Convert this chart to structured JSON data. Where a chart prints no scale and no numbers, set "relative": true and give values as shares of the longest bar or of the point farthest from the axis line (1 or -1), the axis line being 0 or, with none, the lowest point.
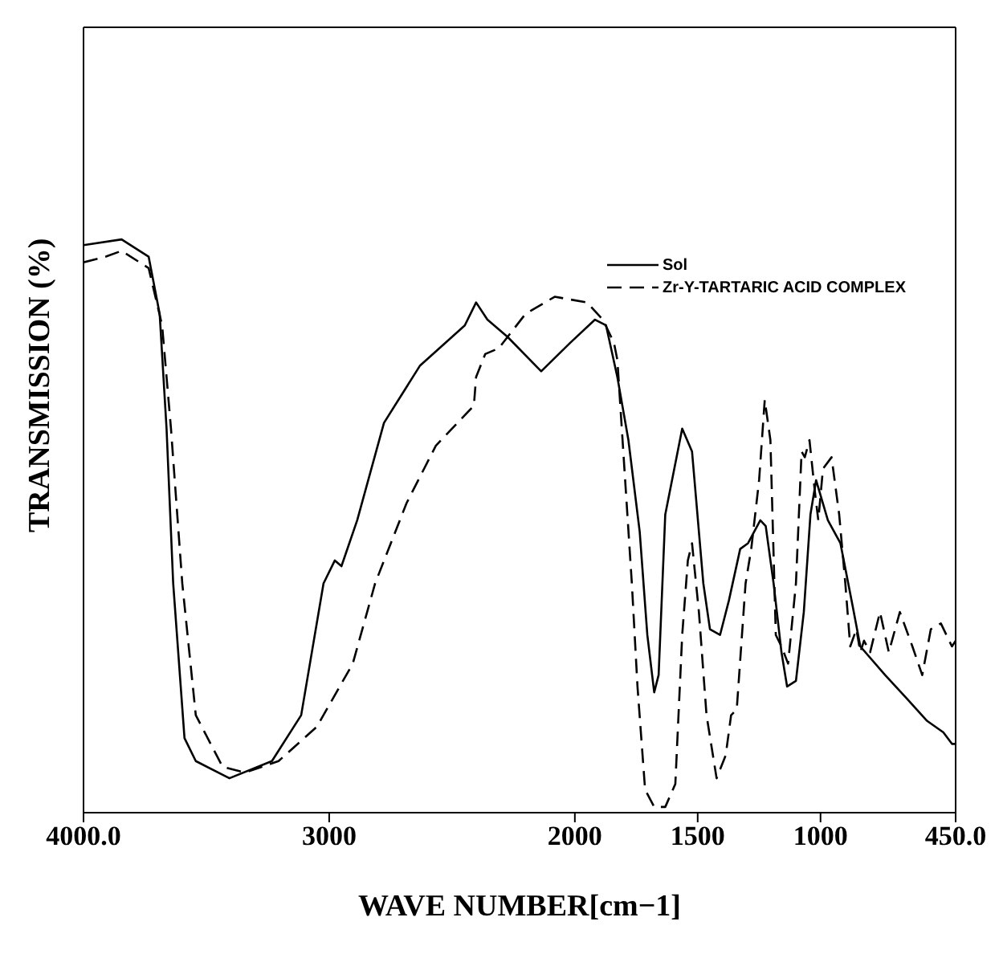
{
  "chart_data": {
    "type": "line",
    "relative": true,
    "xlabel": "WAVE NUMBER[cm−1]",
    "ylabel": "TRANSMISSION (%)",
    "xlim": [
      4000,
      450
    ],
    "xticks": [
      {
        "value": 4000,
        "label": "4000.0"
      },
      3000,
      2000,
      1500,
      1000,
      {
        "value": 450,
        "label": "450.0"
      }
    ],
    "legend": "top right",
    "grid": false,
    "marker": "none",
    "series": [
      {
        "name": "Sol",
        "color": "#000000",
        "line_style": "solid",
        "x": [
          4000,
          3845,
          3735,
          3690,
          3662,
          3635,
          3589,
          3543,
          3406,
          3233,
          3114,
          3023,
          2977,
          2950,
          2886,
          2777,
          2630,
          2448,
          2402,
          2356,
          2274,
          2137,
          2018,
          1918,
          1873,
          1827,
          1782,
          1736,
          1705,
          1677,
          1659,
          1632,
          1563,
          1523,
          1477,
          1450,
          1409,
          1373,
          1327,
          1295,
          1245,
          1223,
          1191,
          1159,
          1136,
          1100,
          1068,
          1041,
          1018,
          970,
          919,
          869,
          838,
          737,
          651,
          566,
          500,
          465,
          450
        ],
        "values": [
          0.99,
          1,
          0.97,
          0.87,
          0.67,
          0.4,
          0.13,
          0.09,
          0.06,
          0.09,
          0.17,
          0.4,
          0.44,
          0.43,
          0.51,
          0.68,
          0.78,
          0.85,
          0.89,
          0.86,
          0.83,
          0.77,
          0.82,
          0.86,
          0.85,
          0.76,
          0.65,
          0.49,
          0.31,
          0.21,
          0.24,
          0.52,
          0.67,
          0.63,
          0.4,
          0.32,
          0.31,
          0.37,
          0.46,
          0.47,
          0.51,
          0.5,
          0.4,
          0.28,
          0.22,
          0.23,
          0.35,
          0.52,
          0.58,
          0.51,
          0.47,
          0.36,
          0.29,
          0.24,
          0.2,
          0.16,
          0.14,
          0.12,
          0.12
        ]
      },
      {
        "name": "Zr-Y-TARTARIC ACID COMPLEX",
        "color": "#000000",
        "line_style": "dashed",
        "x": [
          4000,
          3909,
          3845,
          3735,
          3680,
          3644,
          3598,
          3543,
          3434,
          3343,
          3206,
          3050,
          2904,
          2813,
          2685,
          2566,
          2411,
          2402,
          2365,
          2310,
          2201,
          2082,
          1950,
          1886,
          1841,
          1827,
          1768,
          1745,
          1714,
          1677,
          1632,
          1591,
          1563,
          1540,
          1523,
          1495,
          1464,
          1423,
          1386,
          1364,
          1341,
          1305,
          1282,
          1250,
          1227,
          1204,
          1182,
          1159,
          1132,
          1100,
          1077,
          1064,
          1045,
          1023,
          1009,
          990,
          955,
          924,
          899,
          879,
          854,
          838,
          823,
          798,
          758,
          722,
          677,
          626,
          586,
          551,
          510,
          465,
          450
        ],
        "values": [
          0.96,
          0.97,
          0.98,
          0.95,
          0.85,
          0.67,
          0.4,
          0.17,
          0.08,
          0.07,
          0.09,
          0.15,
          0.26,
          0.4,
          0.54,
          0.64,
          0.71,
          0.76,
          0.8,
          0.81,
          0.87,
          0.9,
          0.89,
          0.86,
          0.82,
          0.79,
          0.4,
          0.22,
          0.04,
          0.01,
          0.01,
          0.05,
          0.31,
          0.44,
          0.47,
          0.35,
          0.17,
          0.06,
          0.1,
          0.17,
          0.18,
          0.4,
          0.46,
          0.58,
          0.72,
          0.65,
          0.31,
          0.29,
          0.26,
          0.4,
          0.63,
          0.62,
          0.65,
          0.56,
          0.51,
          0.6,
          0.62,
          0.52,
          0.4,
          0.29,
          0.32,
          0.28,
          0.3,
          0.28,
          0.35,
          0.28,
          0.35,
          0.29,
          0.24,
          0.32,
          0.33,
          0.29,
          0.3
        ]
      }
    ]
  }
}
